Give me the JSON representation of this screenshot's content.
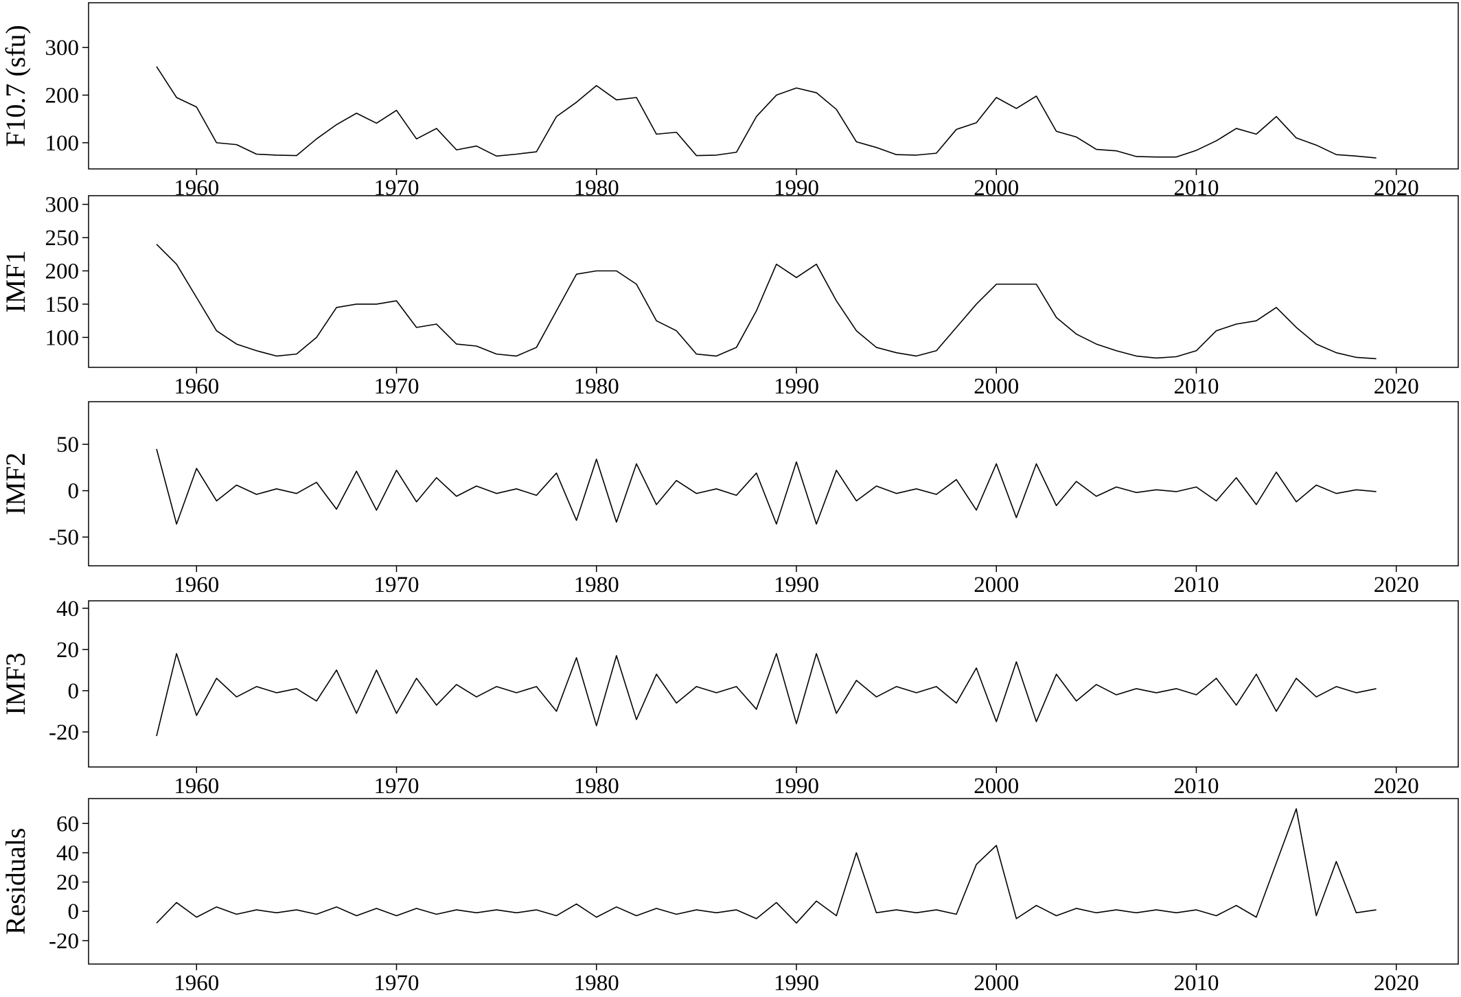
{
  "chart_data": [
    {
      "type": "line",
      "ylabel": "F10.7 (sfu)",
      "color": "#000000",
      "x": [
        1958,
        1959,
        1960,
        1961,
        1962,
        1963,
        1964,
        1965,
        1966,
        1967,
        1968,
        1969,
        1970,
        1971,
        1972,
        1973,
        1974,
        1975,
        1976,
        1977,
        1978,
        1979,
        1980,
        1981,
        1982,
        1983,
        1984,
        1985,
        1986,
        1987,
        1988,
        1989,
        1990,
        1991,
        1992,
        1993,
        1994,
        1995,
        1996,
        1997,
        1998,
        1999,
        2000,
        2001,
        2002,
        2003,
        2004,
        2005,
        2006,
        2007,
        2008,
        2009,
        2010,
        2011,
        2012,
        2013,
        2014,
        2015,
        2016,
        2017,
        2018,
        2019
      ],
      "values": [
        260,
        195,
        175,
        100,
        96,
        76,
        74,
        73,
        108,
        138,
        162,
        141,
        168,
        108,
        130,
        85,
        93,
        72,
        76,
        81,
        155,
        185,
        220,
        190,
        195,
        118,
        122,
        73,
        74,
        80,
        155,
        200,
        215,
        205,
        170,
        102,
        90,
        75,
        74,
        78,
        128,
        142,
        195,
        172,
        198,
        124,
        112,
        86,
        83,
        71,
        70,
        70,
        84,
        104,
        130,
        118,
        155,
        110,
        95,
        75,
        72,
        68
      ],
      "xlim": [
        1954.6,
        2023.1
      ],
      "xticks": [
        1960,
        1970,
        1980,
        1990,
        2000,
        2010,
        2020
      ],
      "ylim": [
        45,
        394
      ],
      "yticks": [
        100,
        200,
        300
      ]
    },
    {
      "type": "line",
      "ylabel": "IMF1",
      "color": "#000000",
      "x": [
        1958,
        1959,
        1960,
        1961,
        1962,
        1963,
        1964,
        1965,
        1966,
        1967,
        1968,
        1969,
        1970,
        1971,
        1972,
        1973,
        1974,
        1975,
        1976,
        1977,
        1978,
        1979,
        1980,
        1981,
        1982,
        1983,
        1984,
        1985,
        1986,
        1987,
        1988,
        1989,
        1990,
        1991,
        1992,
        1993,
        1994,
        1995,
        1996,
        1997,
        1998,
        1999,
        2000,
        2001,
        2002,
        2003,
        2004,
        2005,
        2006,
        2007,
        2008,
        2009,
        2010,
        2011,
        2012,
        2013,
        2014,
        2015,
        2016,
        2017,
        2018,
        2019
      ],
      "values": [
        240,
        210,
        160,
        110,
        90,
        80,
        72,
        75,
        100,
        145,
        150,
        150,
        155,
        115,
        120,
        90,
        87,
        75,
        72,
        85,
        140,
        195,
        200,
        200,
        180,
        125,
        110,
        75,
        72,
        85,
        140,
        210,
        190,
        210,
        155,
        110,
        85,
        77,
        72,
        80,
        115,
        150,
        180,
        180,
        180,
        130,
        105,
        90,
        80,
        72,
        69,
        71,
        80,
        110,
        120,
        125,
        145,
        115,
        90,
        77,
        70,
        68
      ],
      "xlim": [
        1954.6,
        2023.1
      ],
      "xticks": [
        1960,
        1970,
        1980,
        1990,
        2000,
        2010,
        2020
      ],
      "ylim": [
        55,
        313
      ],
      "yticks": [
        100,
        150,
        200,
        250,
        300
      ]
    },
    {
      "type": "line",
      "ylabel": "IMF2",
      "color": "#000000",
      "x": [
        1958,
        1959,
        1960,
        1961,
        1962,
        1963,
        1964,
        1965,
        1966,
        1967,
        1968,
        1969,
        1970,
        1971,
        1972,
        1973,
        1974,
        1975,
        1976,
        1977,
        1978,
        1979,
        1980,
        1981,
        1982,
        1983,
        1984,
        1985,
        1986,
        1987,
        1988,
        1989,
        1990,
        1991,
        1992,
        1993,
        1994,
        1995,
        1996,
        1997,
        1998,
        1999,
        2000,
        2001,
        2002,
        2003,
        2004,
        2005,
        2006,
        2007,
        2008,
        2009,
        2010,
        2011,
        2012,
        2013,
        2014,
        2015,
        2016,
        2017,
        2018,
        2019
      ],
      "values": [
        45,
        -36,
        24,
        -11,
        6,
        -4,
        2,
        -3,
        9,
        -20,
        21,
        -21,
        22,
        -12,
        14,
        -6,
        5,
        -3,
        2,
        -5,
        19,
        -32,
        34,
        -34,
        29,
        -15,
        11,
        -3,
        2,
        -5,
        19,
        -36,
        31,
        -36,
        22,
        -11,
        5,
        -3,
        2,
        -4,
        12,
        -21,
        29,
        -29,
        29,
        -16,
        10,
        -6,
        4,
        -2,
        1,
        -1,
        4,
        -11,
        14,
        -15,
        20,
        -12,
        6,
        -3,
        1,
        -1
      ],
      "xlim": [
        1954.6,
        2023.1
      ],
      "xticks": [
        1960,
        1970,
        1980,
        1990,
        2000,
        2010,
        2020
      ],
      "ylim": [
        -81,
        96
      ],
      "yticks": [
        -50,
        0,
        50
      ]
    },
    {
      "type": "line",
      "ylabel": "IMF3",
      "color": "#000000",
      "x": [
        1958,
        1959,
        1960,
        1961,
        1962,
        1963,
        1964,
        1965,
        1966,
        1967,
        1968,
        1969,
        1970,
        1971,
        1972,
        1973,
        1974,
        1975,
        1976,
        1977,
        1978,
        1979,
        1980,
        1981,
        1982,
        1983,
        1984,
        1985,
        1986,
        1987,
        1988,
        1989,
        1990,
        1991,
        1992,
        1993,
        1994,
        1995,
        1996,
        1997,
        1998,
        1999,
        2000,
        2001,
        2002,
        2003,
        2004,
        2005,
        2006,
        2007,
        2008,
        2009,
        2010,
        2011,
        2012,
        2013,
        2014,
        2015,
        2016,
        2017,
        2018,
        2019
      ],
      "values": [
        -22,
        18,
        -12,
        6,
        -3,
        2,
        -1,
        1,
        -5,
        10,
        -11,
        10,
        -11,
        6,
        -7,
        3,
        -3,
        2,
        -1,
        2,
        -10,
        16,
        -17,
        17,
        -14,
        8,
        -6,
        2,
        -1,
        2,
        -9,
        18,
        -16,
        18,
        -11,
        5,
        -3,
        2,
        -1,
        2,
        -6,
        11,
        -15,
        14,
        -15,
        8,
        -5,
        3,
        -2,
        1,
        -1,
        1,
        -2,
        6,
        -7,
        8,
        -10,
        6,
        -3,
        2,
        -1,
        1
      ],
      "xlim": [
        1954.6,
        2023.1
      ],
      "xticks": [
        1960,
        1970,
        1980,
        1990,
        2000,
        2010,
        2020
      ],
      "ylim": [
        -37,
        43.6
      ],
      "yticks": [
        -20,
        0,
        20,
        40
      ]
    },
    {
      "type": "line",
      "ylabel": "Residuals",
      "color": "#000000",
      "x": [
        1958,
        1959,
        1960,
        1961,
        1962,
        1963,
        1964,
        1965,
        1966,
        1967,
        1968,
        1969,
        1970,
        1971,
        1972,
        1973,
        1974,
        1975,
        1976,
        1977,
        1978,
        1979,
        1980,
        1981,
        1982,
        1983,
        1984,
        1985,
        1986,
        1987,
        1988,
        1989,
        1990,
        1991,
        1992,
        1993,
        1994,
        1995,
        1996,
        1997,
        1998,
        1999,
        2000,
        2001,
        2002,
        2003,
        2004,
        2005,
        2006,
        2007,
        2008,
        2009,
        2010,
        2011,
        2012,
        2013,
        2014,
        2015,
        2016,
        2017,
        2018,
        2019
      ],
      "values": [
        -8,
        6,
        -4,
        3,
        -2,
        1,
        -1,
        1,
        -2,
        3,
        -3,
        2,
        -3,
        2,
        -2,
        1,
        -1,
        1,
        -1,
        1,
        -3,
        5,
        -4,
        3,
        -3,
        2,
        -2,
        1,
        -1,
        1,
        -5,
        6,
        -8,
        7,
        -3,
        40,
        -1,
        1,
        -1,
        1,
        -2,
        32,
        45,
        -5,
        4,
        -3,
        2,
        -1,
        1,
        -1,
        1,
        -1,
        1,
        -3,
        4,
        -4,
        33,
        70,
        -3,
        34,
        -1,
        1
      ],
      "xlim": [
        1954.6,
        2023.1
      ],
      "xticks": [
        1960,
        1970,
        1980,
        1990,
        2000,
        2010,
        2020
      ],
      "ylim": [
        -36,
        77
      ],
      "yticks": [
        -20,
        0,
        20,
        40,
        60
      ]
    }
  ]
}
